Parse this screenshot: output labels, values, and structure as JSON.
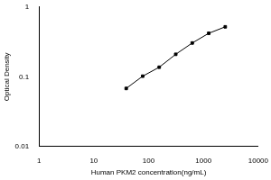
{
  "chart_data": {
    "type": "line",
    "x_label": "Human PKM2 concentration(ng/mL)",
    "y_label": "Optical Density",
    "x": [
      39,
      78,
      156,
      312.5,
      625,
      1250,
      2500
    ],
    "values": [
      0.068,
      0.102,
      0.137,
      0.21,
      0.305,
      0.42,
      0.52
    ],
    "color": "#000000",
    "marker": "square",
    "log": true,
    "grid": false,
    "xlim": [
      1,
      10000
    ],
    "xticks": [
      1,
      10,
      100,
      1000,
      10000
    ],
    "ylim": [
      0.01,
      1
    ],
    "yticks": [
      0.01,
      0.1,
      1
    ]
  }
}
